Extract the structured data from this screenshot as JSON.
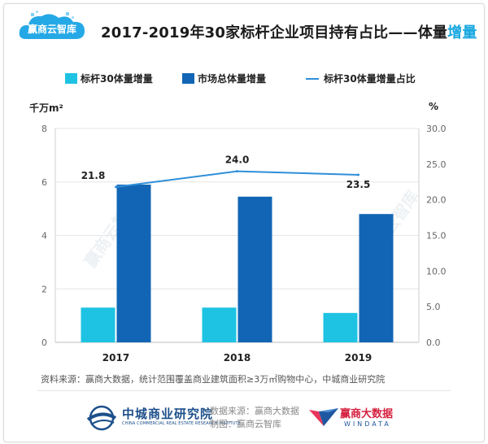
{
  "header": {
    "brand": "赢商云智库",
    "title_main": "2017-2019年30家标杆企业项目持有占比——体量",
    "title_highlight": "增量"
  },
  "chart_data": {
    "type": "bar",
    "categories": [
      "2017",
      "2018",
      "2019"
    ],
    "series": [
      {
        "name": "标杆30体量增量",
        "type": "bar",
        "axis": "left",
        "color": "#1ec3e3",
        "values": [
          1.3,
          1.3,
          1.1
        ]
      },
      {
        "name": "市场总体量增量",
        "type": "bar",
        "axis": "left",
        "color": "#1265b4",
        "values": [
          5.9,
          5.45,
          4.8
        ]
      },
      {
        "name": "标杆30体量增量占比",
        "type": "line",
        "axis": "right",
        "color": "#2f8fd8",
        "values": [
          21.8,
          24.0,
          23.5
        ],
        "labels": [
          "21.8",
          "24.0",
          "23.5"
        ]
      }
    ],
    "ylabel": "千万m²",
    "ylabel_right": "%",
    "ylim": [
      0,
      8
    ],
    "ylim_right": [
      0,
      30
    ],
    "yticks": [
      "0",
      "2",
      "4",
      "6",
      "8"
    ],
    "yticks_right": [
      "0.0",
      "5.0",
      "10.0",
      "15.0",
      "20.0",
      "25.0",
      "30.0"
    ],
    "grid": true,
    "legend": "top"
  },
  "watermark": "赢商云智库",
  "footnote": "资料来源：赢商大数据，统计范围覆盖商业建筑面积≥3万㎡购物中心，中城商业研究院",
  "footer": {
    "org_name": "中城商业研究院",
    "org_name_en": "CHINA COMMERCIAL REAL ESTATE RESEARCH INSTITUTE",
    "data_source": "数据来源：赢商大数据",
    "made_by": "制图：赢商云智库",
    "partner_name": "赢商大数据",
    "partner_name_en": "WINDATA"
  }
}
